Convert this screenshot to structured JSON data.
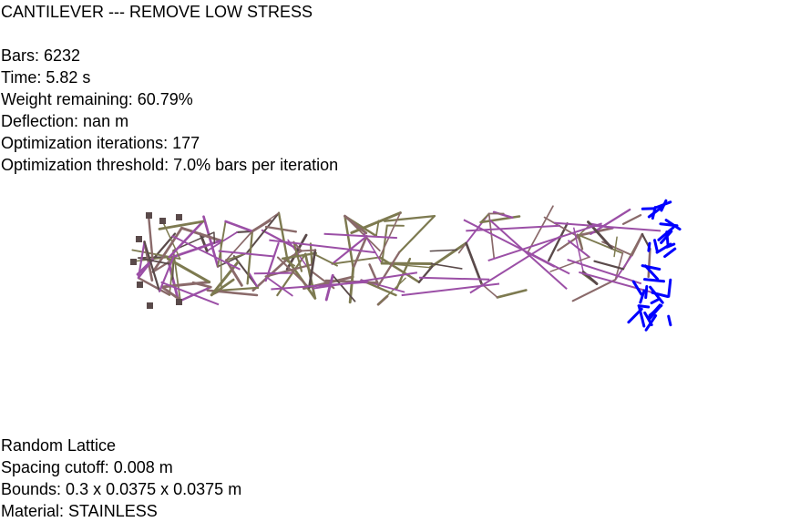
{
  "title": "CANTILEVER --- REMOVE LOW STRESS",
  "stats": {
    "bars": "Bars: 6232",
    "time": "Time: 5.82 s",
    "weight": "Weight remaining: 60.79%",
    "deflection": "Deflection: nan m",
    "iterations": "Optimization iterations: 177",
    "threshold": "Optimization threshold: 7.0% bars per iteration"
  },
  "info": {
    "lattice": "Random Lattice",
    "spacing": "Spacing cutoff: 0.008 m",
    "bounds": "Bounds: 0.3 x 0.0375 x 0.0375 m",
    "material": "Material: STAINLESS"
  },
  "colors": {
    "bar_brown": "#8a6a6a",
    "bar_olive": "#7d7a50",
    "bar_purple": "#9b4fa6",
    "bar_dark": "#5a4a4a",
    "load_arrows": "#0000ff"
  }
}
